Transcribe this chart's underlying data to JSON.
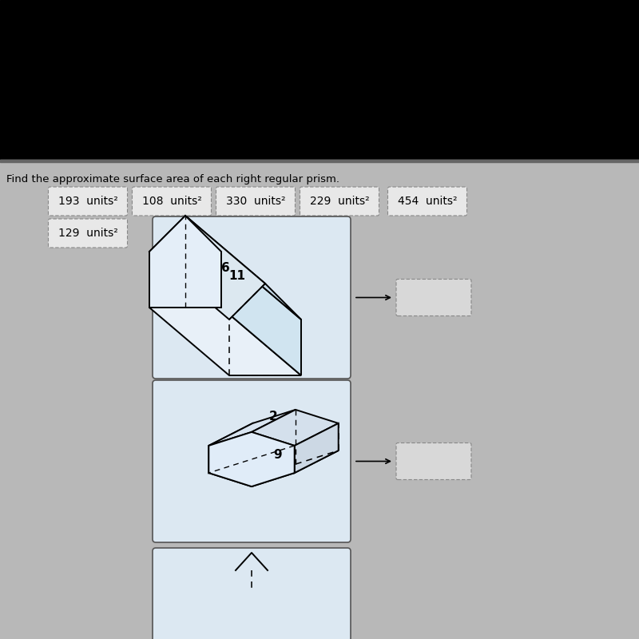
{
  "title": "Find the approximate surface area of each right regular prism.",
  "answer_boxes": [
    "193  units²",
    "108  units²",
    "330  units²",
    "229  units²",
    "454  units²",
    "129  units²"
  ],
  "background_color": "#b8b8b8",
  "topbar_color": "#000000",
  "box_bg": "#e8e8e8",
  "box_border": "#888888",
  "prism_box_bg": "#dce8f2",
  "answer_drop_bg": "#d8d8d8",
  "title_fontsize": 9.5,
  "answer_fontsize": 10,
  "prism1_label_side": "6",
  "prism1_label_height": "11",
  "prism2_label_side": "2",
  "prism2_label_height": "9",
  "line_color": "#000000",
  "face_color": "#ddeeff",
  "top_color": "#ffffff"
}
